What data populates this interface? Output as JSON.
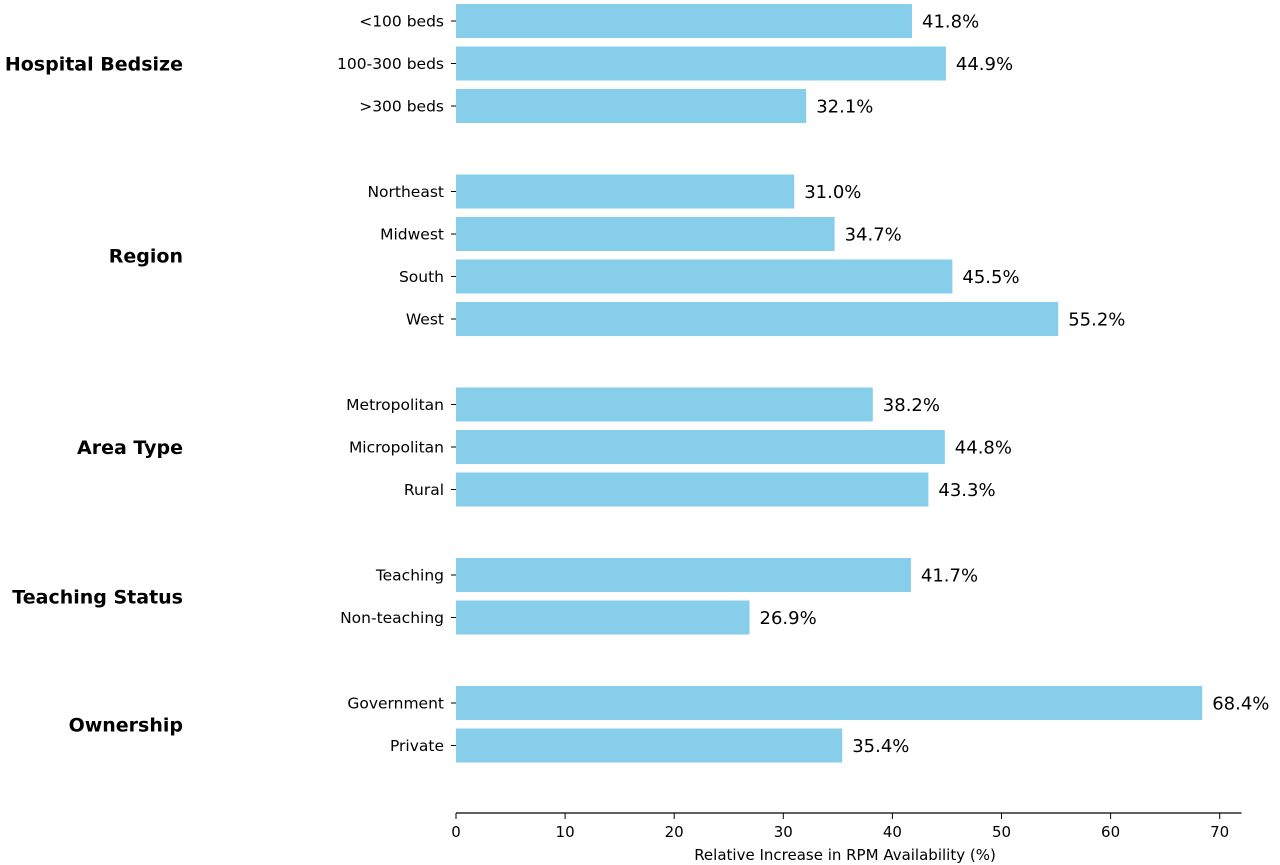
{
  "chart_data": {
    "type": "bar",
    "orientation": "horizontal",
    "xlabel": "Relative Increase in RPM Availability (%)",
    "xlim": [
      0,
      72
    ],
    "xticks": [
      0,
      10,
      20,
      30,
      40,
      50,
      60,
      70
    ],
    "value_suffix": "%",
    "bar_color": "#87ceeb",
    "grid": false,
    "groups": [
      {
        "name": "Hospital Bedsize",
        "items": [
          {
            "label": "<100 beds",
            "value": 41.8
          },
          {
            "label": "100-300 beds",
            "value": 44.9
          },
          {
            "label": ">300 beds",
            "value": 32.1
          }
        ]
      },
      {
        "name": "Region",
        "items": [
          {
            "label": "Northeast",
            "value": 31.0
          },
          {
            "label": "Midwest",
            "value": 34.7
          },
          {
            "label": "South",
            "value": 45.5
          },
          {
            "label": "West",
            "value": 55.2
          }
        ]
      },
      {
        "name": "Area Type",
        "items": [
          {
            "label": "Metropolitan",
            "value": 38.2
          },
          {
            "label": "Micropolitan",
            "value": 44.8
          },
          {
            "label": "Rural",
            "value": 43.3
          }
        ]
      },
      {
        "name": "Teaching Status",
        "items": [
          {
            "label": "Teaching",
            "value": 41.7
          },
          {
            "label": "Non-teaching",
            "value": 26.9
          }
        ]
      },
      {
        "name": "Ownership",
        "items": [
          {
            "label": "Government",
            "value": 68.4
          },
          {
            "label": "Private",
            "value": 35.4
          }
        ]
      }
    ]
  }
}
